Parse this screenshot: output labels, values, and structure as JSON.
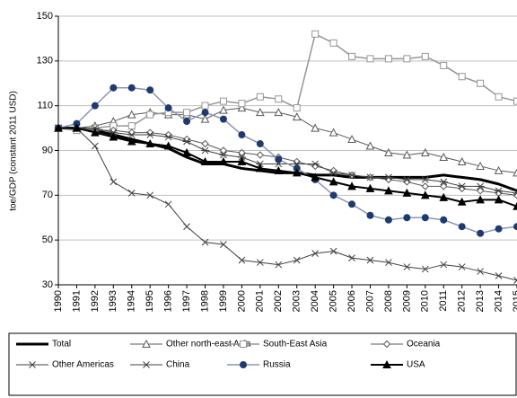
{
  "chart_data": {
    "type": "line",
    "y_label": "toe/GDP (constant 2011 USD)",
    "categories": [
      "1990",
      "1991",
      "1992",
      "1993",
      "1994",
      "1995",
      "1996",
      "1997",
      "1998",
      "1999",
      "2000",
      "2001",
      "2002",
      "2003",
      "2004",
      "2005",
      "2006",
      "2007",
      "2008",
      "2009",
      "2010",
      "2011",
      "2012",
      "2013",
      "2014",
      "2015"
    ],
    "ylim": [
      30,
      150
    ],
    "yticks": [
      30,
      50,
      70,
      90,
      110,
      130,
      150
    ],
    "grid": true,
    "series": [
      {
        "name": "Total",
        "color": "#000000",
        "marker": "none",
        "width": 3,
        "values": [
          100,
          100,
          99,
          97,
          95,
          93,
          91,
          87,
          84,
          84,
          82,
          81,
          80,
          80,
          79,
          79,
          78,
          78,
          78,
          78,
          78,
          79,
          78,
          77,
          75,
          72
        ]
      },
      {
        "name": "Other north-east Asia",
        "color": "#595959",
        "marker": "triangle",
        "width": 1,
        "values": [
          100,
          100,
          101,
          103,
          106,
          107,
          106,
          106,
          104,
          108,
          109,
          107,
          107,
          105,
          100,
          98,
          95,
          92,
          89,
          88,
          89,
          87,
          85,
          83,
          81,
          80
        ]
      },
      {
        "name": "South-East Asia",
        "color": "#969696",
        "marker": "square",
        "width": 1.5,
        "values": [
          100,
          99,
          100,
          101,
          101,
          106,
          107,
          107,
          110,
          112,
          111,
          114,
          113,
          109,
          142,
          138,
          132,
          131,
          131,
          131,
          132,
          128,
          123,
          120,
          114,
          112
        ]
      },
      {
        "name": "Oceania",
        "color": "#595959",
        "marker": "diamond",
        "width": 1,
        "values": [
          100,
          100,
          99,
          99,
          98,
          98,
          97,
          95,
          93,
          90,
          89,
          88,
          87,
          85,
          83,
          81,
          79,
          78,
          77,
          76,
          74,
          74,
          73,
          72,
          71,
          70
        ]
      },
      {
        "name": "Other Americas",
        "color": "#404040",
        "marker": "asterisk",
        "width": 1,
        "values": [
          100,
          100,
          100,
          98,
          97,
          97,
          96,
          94,
          90,
          88,
          87,
          84,
          84,
          84,
          84,
          80,
          79,
          78,
          78,
          77,
          77,
          76,
          74,
          74,
          72,
          71
        ]
      },
      {
        "name": "China",
        "color": "#404040",
        "marker": "x",
        "width": 1,
        "values": [
          100,
          100,
          92,
          76,
          71,
          70,
          66,
          56,
          49,
          48,
          41,
          40,
          39,
          41,
          44,
          45,
          42,
          41,
          40,
          38,
          37,
          39,
          38,
          36,
          34,
          32
        ]
      },
      {
        "name": "Russia",
        "color": "#8c96b4",
        "marker": "circle",
        "width": 1.5,
        "values": [
          100,
          102,
          110,
          118,
          118,
          117,
          109,
          103,
          107,
          104,
          97,
          93,
          86,
          82,
          77,
          70,
          66,
          61,
          59,
          60,
          60,
          59,
          56,
          53,
          55,
          56
        ]
      },
      {
        "name": "USA",
        "color": "#000000",
        "marker": "triangle-filled",
        "width": 2,
        "values": [
          100,
          100,
          98,
          96,
          94,
          93,
          92,
          89,
          85,
          85,
          85,
          82,
          81,
          80,
          78,
          76,
          74,
          73,
          72,
          71,
          70,
          69,
          67,
          68,
          68,
          65
        ]
      }
    ]
  }
}
